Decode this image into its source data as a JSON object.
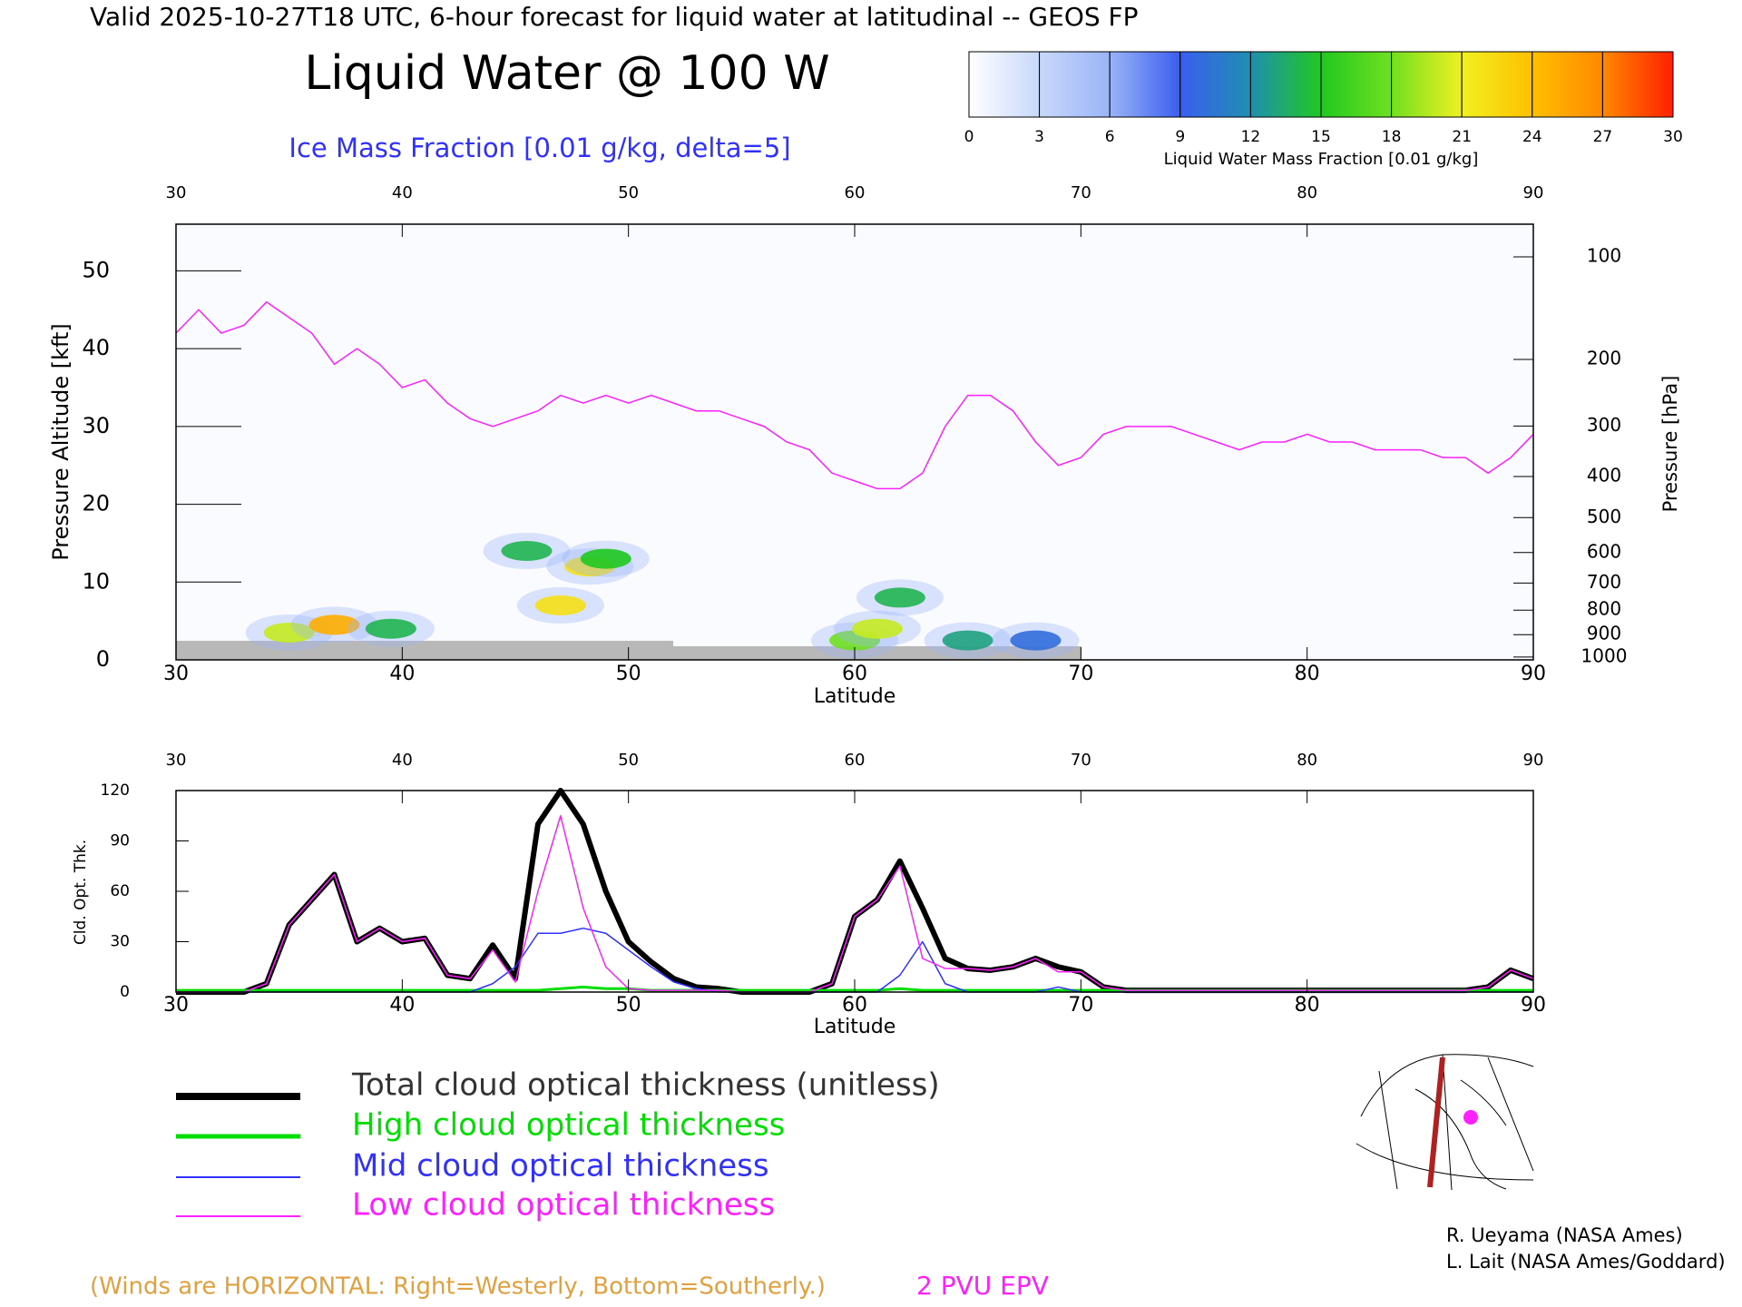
{
  "header": "Valid 2025-10-27T18 UTC, 6-hour forecast for liquid water at latitudinal -- GEOS FP",
  "chart_data": [
    {
      "type": "cross-section",
      "title": "Liquid Water @ 100 W",
      "subtitle": "Ice Mass Fraction [0.01 g/kg, delta=5]",
      "x_label": "Latitude",
      "y_label": "Pressure Altitude [kft]",
      "y2_label": "Pressure [hPa]",
      "xlim": [
        30,
        90
      ],
      "xticks": [
        30,
        40,
        50,
        60,
        70,
        80,
        90
      ],
      "ylim": [
        0,
        56
      ],
      "yticks": [
        0,
        10,
        20,
        30,
        40,
        50
      ],
      "y2scale": "pressure-altitude",
      "y2ticks": [
        100,
        200,
        300,
        400,
        500,
        600,
        700,
        800,
        900,
        1000
      ],
      "colorbar": {
        "label": "Liquid Water Mass Fraction [0.01 g/kg]",
        "ticks": [
          0,
          3,
          6,
          9,
          12,
          15,
          18,
          21,
          24,
          27,
          30
        ],
        "colors": [
          "#ffffff",
          "#c8d8fb",
          "#9ab4f6",
          "#3a5ef0",
          "#1f8fb0",
          "#20c820",
          "#70e020",
          "#f0f020",
          "#ffc000",
          "#ff8800",
          "#ff2000"
        ]
      },
      "liquid_water": {
        "x": [
          35,
          37,
          39.5,
          45.5,
          47,
          48.3,
          49,
          60,
          61,
          62,
          65,
          68
        ],
        "y": [
          3.5,
          4.5,
          4,
          14,
          7,
          12,
          13,
          2.5,
          4,
          8,
          2.5,
          2.5
        ],
        "values": [
          20,
          25,
          14,
          14,
          22,
          22,
          15,
          18,
          20,
          14,
          13,
          10
        ]
      },
      "tropopause": {
        "name": "2 PVU EPV",
        "color": "#ff20ff",
        "x": [
          30,
          31,
          32,
          33,
          34,
          35,
          36,
          37,
          38,
          39,
          40,
          41,
          42,
          43,
          44,
          45,
          46,
          47,
          48,
          49,
          50,
          51,
          52,
          53,
          54,
          55,
          56,
          57,
          58,
          59,
          60,
          61,
          62,
          63,
          64,
          65,
          66,
          67,
          68,
          69,
          70,
          71,
          72,
          73,
          74,
          75,
          76,
          77,
          78,
          79,
          80,
          81,
          82,
          83,
          84,
          85,
          86,
          87,
          88,
          89,
          90
        ],
        "values": [
          42,
          45,
          42,
          43,
          46,
          44,
          42,
          38,
          40,
          38,
          35,
          36,
          33,
          31,
          30,
          31,
          32,
          34,
          33,
          34,
          33,
          34,
          33,
          32,
          32,
          31,
          30,
          28,
          27,
          24,
          23,
          22,
          22,
          24,
          30,
          34,
          34,
          32,
          28,
          25,
          26,
          29,
          30,
          30,
          30,
          29,
          28,
          27,
          28,
          28,
          29,
          28,
          28,
          27,
          27,
          27,
          26,
          26,
          24,
          26,
          29
        ]
      },
      "footnote": "(Winds are HORIZONTAL: Right=Westerly, Bottom=Southerly.)"
    },
    {
      "type": "line",
      "y_label": "Cld. Opt. Thk.",
      "x_label": "Latitude",
      "xlim": [
        30,
        90
      ],
      "xticks": [
        30,
        40,
        50,
        60,
        70,
        80,
        90
      ],
      "ylim": [
        0,
        120
      ],
      "yticks": [
        0,
        30,
        60,
        90,
        120
      ],
      "x": [
        30,
        31,
        32,
        33,
        34,
        35,
        36,
        37,
        38,
        39,
        40,
        41,
        42,
        43,
        44,
        45,
        46,
        47,
        48,
        49,
        50,
        51,
        52,
        53,
        54,
        55,
        56,
        57,
        58,
        59,
        60,
        61,
        62,
        63,
        64,
        65,
        66,
        67,
        68,
        69,
        70,
        71,
        72,
        73,
        74,
        75,
        76,
        77,
        78,
        79,
        80,
        81,
        82,
        83,
        84,
        85,
        86,
        87,
        88,
        89,
        90
      ],
      "series": [
        {
          "name": "Total cloud optical thickness (unitless)",
          "color": "#000000",
          "width": 6,
          "values": [
            0,
            0,
            0,
            0,
            5,
            40,
            55,
            70,
            30,
            38,
            30,
            32,
            10,
            8,
            28,
            8,
            100,
            120,
            100,
            60,
            30,
            18,
            8,
            3,
            2,
            0,
            0,
            0,
            0,
            5,
            45,
            55,
            78,
            50,
            20,
            14,
            13,
            15,
            20,
            15,
            12,
            3,
            1,
            1,
            1,
            1,
            1,
            1,
            1,
            1,
            1,
            1,
            1,
            1,
            1,
            1,
            1,
            1,
            3,
            13,
            8
          ]
        },
        {
          "name": "High cloud optical thickness",
          "color": "#00dd00",
          "width": 3,
          "values": [
            1,
            1,
            1,
            1,
            1,
            1,
            1,
            1,
            1,
            1,
            1,
            1,
            1,
            1,
            1,
            1,
            1,
            2,
            3,
            2,
            2,
            1,
            1,
            1,
            1,
            1,
            1,
            1,
            1,
            1,
            1,
            1,
            2,
            1,
            1,
            1,
            1,
            1,
            1,
            1,
            1,
            1,
            1,
            1,
            1,
            1,
            1,
            1,
            1,
            1,
            1,
            1,
            1,
            1,
            1,
            1,
            1,
            1,
            1,
            1,
            1
          ]
        },
        {
          "name": "Mid cloud optical thickness",
          "color": "#3030ff",
          "width": 1.5,
          "values": [
            0,
            0,
            0,
            0,
            0,
            0,
            0,
            0,
            0,
            0,
            0,
            0,
            0,
            0,
            5,
            15,
            35,
            35,
            38,
            35,
            25,
            15,
            6,
            2,
            0,
            0,
            0,
            0,
            0,
            0,
            0,
            0,
            10,
            30,
            5,
            0,
            0,
            0,
            0,
            3,
            0,
            0,
            0,
            0,
            0,
            0,
            0,
            0,
            0,
            0,
            0,
            0,
            0,
            0,
            0,
            0,
            0,
            0,
            0,
            0,
            0
          ]
        },
        {
          "name": "Low cloud optical thickness",
          "color": "#ff20ff",
          "width": 1.5,
          "values": [
            0,
            0,
            0,
            0,
            5,
            40,
            55,
            70,
            30,
            38,
            30,
            32,
            10,
            8,
            25,
            6,
            60,
            105,
            50,
            15,
            2,
            1,
            1,
            1,
            1,
            0,
            0,
            0,
            0,
            5,
            45,
            55,
            75,
            20,
            14,
            14,
            13,
            15,
            20,
            12,
            12,
            3,
            1,
            1,
            1,
            1,
            1,
            1,
            1,
            1,
            1,
            1,
            1,
            1,
            1,
            1,
            1,
            1,
            3,
            13,
            8
          ]
        }
      ]
    }
  ],
  "credits": [
    "R. Ueyama (NASA Ames)",
    "L. Lait (NASA Ames/Goddard)"
  ]
}
